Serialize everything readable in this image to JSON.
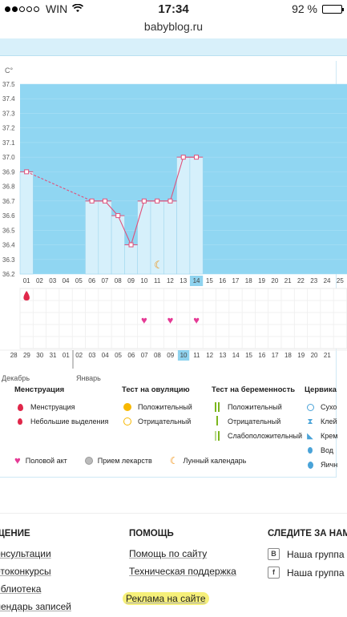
{
  "status_bar": {
    "carrier": "WIN",
    "time": "17:34",
    "battery": "92 %",
    "battery_level": 0.92
  },
  "url": "babyblog.ru",
  "chart_data": {
    "type": "line",
    "y_unit": "C°",
    "ylim": [
      36.2,
      37.5
    ],
    "y_ticks": [
      "37.5",
      "37.4",
      "37.3",
      "37.2",
      "37.1",
      "37.0",
      "36.9",
      "36.8",
      "36.7",
      "36.6",
      "36.5",
      "36.4",
      "36.3",
      "36.2"
    ],
    "x_days": [
      "01",
      "02",
      "03",
      "04",
      "05",
      "06",
      "07",
      "08",
      "09",
      "10",
      "11",
      "12",
      "13",
      "14",
      "15",
      "16",
      "17",
      "18",
      "19",
      "20",
      "21",
      "22",
      "23",
      "24",
      "25"
    ],
    "highlight_day": "14",
    "temperature": [
      {
        "day": "01",
        "value": 36.9
      },
      {
        "day": "06",
        "value": 36.7
      },
      {
        "day": "07",
        "value": 36.7
      },
      {
        "day": "08",
        "value": 36.6
      },
      {
        "day": "09",
        "value": 36.4
      },
      {
        "day": "10",
        "value": 36.7
      },
      {
        "day": "11",
        "value": 36.7
      },
      {
        "day": "12",
        "value": 36.7
      },
      {
        "day": "13",
        "value": 37.0
      },
      {
        "day": "14",
        "value": 37.0
      }
    ],
    "menstruation_days": [
      "01"
    ],
    "intercourse_days": [
      "10",
      "12",
      "14"
    ],
    "moon_day": "11",
    "calendar_dates": [
      "28",
      "29",
      "30",
      "31",
      "01",
      "02",
      "03",
      "04",
      "05",
      "06",
      "07",
      "08",
      "09",
      "10",
      "11",
      "12",
      "13",
      "14",
      "15",
      "16",
      "17",
      "18",
      "19",
      "20",
      "21"
    ],
    "red_dates": [
      "31",
      "01",
      "07",
      "08",
      "14",
      "15",
      "21"
    ],
    "highlight_date": "10"
  },
  "months": {
    "prev": "Декабрь",
    "next": "Январь"
  },
  "legend": {
    "menstruation": {
      "title": "Менструация",
      "items": [
        "Менструация",
        "Небольшие выделения"
      ]
    },
    "ovulation": {
      "title": "Тест на овуляцию",
      "items": [
        "Положительный",
        "Отрицательный"
      ]
    },
    "pregnancy": {
      "title": "Тест на беременность",
      "items": [
        "Положительный",
        "Отрицательный",
        "Слабоположительный"
      ]
    },
    "cervix": {
      "title": "Цервика",
      "items": [
        "Сухо",
        "Клей",
        "Крем",
        "Вод",
        "Яичн"
      ]
    },
    "bottom": [
      "Половой акт",
      "Прием лекарств",
      "Лунный календарь"
    ]
  },
  "colors": {
    "chart_bg": "#90d6f2",
    "bar": "#d6f0fb",
    "line": "#e0507a",
    "highlight": "#8fd3ef",
    "red_date": "#e0274a",
    "heart": "#e53a95"
  },
  "footer": {
    "col1": {
      "title": "ЩЕНИЕ",
      "links": [
        "онсультации",
        "отоконкурсы",
        "иблиотека",
        "лендарь записей"
      ]
    },
    "col2": {
      "title": "ПОМОЩЬ",
      "links": [
        "Помощь по сайту",
        "Техническая поддержка",
        "Реклама на сайте"
      ]
    },
    "col3": {
      "title": "СЛЕДИТЕ ЗА НАМИ",
      "links": [
        {
          "icon": "В",
          "label": "Наша группа в"
        },
        {
          "icon": "f",
          "label": "Наша группа н"
        }
      ]
    }
  }
}
